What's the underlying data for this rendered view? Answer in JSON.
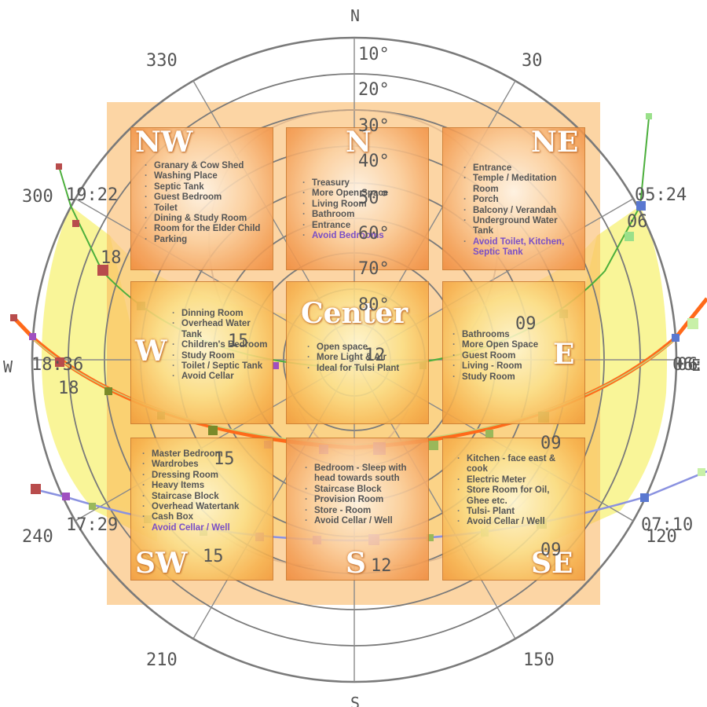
{
  "compass": {
    "north": "N",
    "south": "S",
    "west": "W",
    "east_partial": "E",
    "bearings": [
      "30",
      "120",
      "150",
      "210",
      "240",
      "300",
      "330"
    ],
    "altitude_rings": [
      "10°",
      "20°",
      "30°",
      "40°",
      "50°",
      "60°",
      "70°",
      "80°"
    ]
  },
  "sun_path_labels": {
    "times": [
      "19:22",
      "18:36",
      "17:29",
      "05:24",
      "06:",
      "07:10"
    ],
    "hours": [
      "18",
      "18",
      "15",
      "15",
      "15",
      "12",
      "12",
      "09",
      "09",
      "09",
      "06",
      "06"
    ]
  },
  "vastu_grid": [
    {
      "direction": "NW",
      "items": [
        "Granary & Cow Shed",
        "Washing Place",
        "Septic Tank",
        "Guest Bedroom",
        "Toilet",
        "Dining & Study Room",
        "Room for the Elder Child",
        "Parking"
      ],
      "avoid": ""
    },
    {
      "direction": "N",
      "items": [
        "Treasury",
        "More Open Space",
        "Living Room",
        "Bathroom",
        "Entrance"
      ],
      "avoid": "Avoid Bedrooms"
    },
    {
      "direction": "NE",
      "items": [
        "Entrance",
        "Temple / Meditation Room",
        "Porch",
        "Balcony / Verandah",
        "Underground Water Tank"
      ],
      "avoid": "Avoid Toilet, Kitchen, Septic Tank"
    },
    {
      "direction": "W",
      "items": [
        "Dinning Room",
        "Overhead Water Tank",
        "Children's Bedroom",
        "Study Room",
        "Toilet / Septic Tank",
        "Avoid Cellar"
      ],
      "avoid": ""
    },
    {
      "direction": "Center",
      "items": [
        "Open space",
        "More Light & Air",
        "Ideal for Tulsi Plant"
      ],
      "avoid": ""
    },
    {
      "direction": "E",
      "items": [
        "Bathrooms",
        "More Open Space",
        "Guest Room",
        "Living - Room",
        "Study Room"
      ],
      "avoid": ""
    },
    {
      "direction": "SW",
      "items": [
        "Master Bedroom",
        "Wardrobes",
        "Dressing Room",
        "Heavy Items",
        "Staircase Block",
        "Overhead Watertank",
        "Cash Box"
      ],
      "avoid": "Avoid Cellar / Well"
    },
    {
      "direction": "S",
      "items": [
        "Bedroom - Sleep with head towards south",
        "Staircase Block",
        "Provision Room",
        "Store - Room",
        "Avoid Cellar / Well"
      ],
      "avoid": ""
    },
    {
      "direction": "SE",
      "items": [
        "Kitchen - face east & cook",
        "Electric Meter",
        "Store Room for Oil, Ghee etc.",
        "Tulsi- Plant",
        "Avoid Cellar / Well"
      ],
      "avoid": ""
    }
  ],
  "colors": {
    "summer_curve": "#4caf3c",
    "equinox_curve": "#ff6a1a",
    "winter_curve": "#8a92e0",
    "sun_area": "#f6f37a",
    "avoid_text": "#7a4fc6"
  }
}
